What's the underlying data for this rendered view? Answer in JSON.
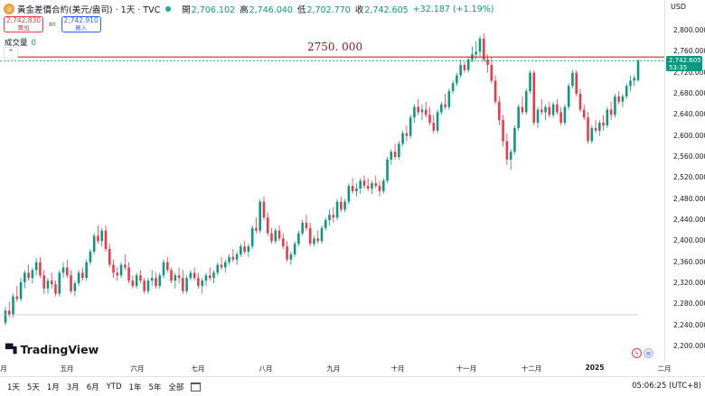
{
  "legend": {
    "symbol_icon": "gold-coin-icon",
    "title": "黃金差價合約(美元/盎司) · 1天 · TVC",
    "open_label": "開",
    "open": "2,706.102",
    "high_label": "高",
    "high": "2,746.040",
    "low_label": "低",
    "low": "2,702.770",
    "close_label": "收",
    "close": "2,742.605",
    "change": "+32.187 (+1.19%)"
  },
  "trade": {
    "sell_price": "2,742.830",
    "sell_label": "賣出",
    "spread": "80",
    "buy_price": "2,742.910",
    "buy_label": "買入"
  },
  "volume": {
    "label": "成交量",
    "value": "0"
  },
  "price_axis": {
    "currency": "USD",
    "ticks": [
      "2,800.000",
      "2,760.000",
      "2,720.000",
      "2,680.000",
      "2,640.000",
      "2,600.000",
      "2,560.000",
      "2,520.000",
      "2,480.000",
      "2,440.000",
      "2,400.000",
      "2,360.000",
      "2,320.000",
      "2,280.000",
      "2,240.000",
      "2,200.000"
    ],
    "last_price": "2,742.605",
    "countdown": "53:35"
  },
  "time_axis": {
    "ticks": [
      "月",
      "五月",
      "六月",
      "七月",
      "八月",
      "九月",
      "十月",
      "十一月",
      "十二月",
      "2025",
      "二月"
    ]
  },
  "horizontal_line": {
    "label": "2750. 000",
    "price": 2750,
    "color": "#cc2a2a"
  },
  "brand": {
    "name": "TradingView"
  },
  "bottom_bar": {
    "ranges": [
      "1天",
      "5天",
      "1月",
      "3月",
      "6月",
      "YTD",
      "1年",
      "5年",
      "全部"
    ],
    "time": "05:06:25 (UTC+8)"
  },
  "colors": {
    "up": "#089981",
    "down": "#f23645",
    "line": "#cc2a2a"
  },
  "chart_data": {
    "type": "candlestick",
    "y_range": [
      2200,
      2800
    ],
    "candles": [
      [
        2245,
        2275,
        2240,
        2268
      ],
      [
        2268,
        2285,
        2255,
        2260
      ],
      [
        2260,
        2300,
        2255,
        2295
      ],
      [
        2295,
        2315,
        2285,
        2290
      ],
      [
        2290,
        2330,
        2285,
        2322
      ],
      [
        2322,
        2345,
        2310,
        2340
      ],
      [
        2340,
        2355,
        2325,
        2330
      ],
      [
        2330,
        2350,
        2320,
        2345
      ],
      [
        2345,
        2368,
        2335,
        2360
      ],
      [
        2360,
        2370,
        2330,
        2335
      ],
      [
        2335,
        2345,
        2300,
        2310
      ],
      [
        2310,
        2330,
        2300,
        2325
      ],
      [
        2325,
        2340,
        2310,
        2318
      ],
      [
        2318,
        2325,
        2295,
        2300
      ],
      [
        2300,
        2345,
        2295,
        2340
      ],
      [
        2340,
        2360,
        2330,
        2350
      ],
      [
        2350,
        2365,
        2330,
        2335
      ],
      [
        2335,
        2345,
        2300,
        2305
      ],
      [
        2305,
        2325,
        2295,
        2320
      ],
      [
        2320,
        2345,
        2315,
        2340
      ],
      [
        2340,
        2350,
        2325,
        2330
      ],
      [
        2330,
        2365,
        2325,
        2360
      ],
      [
        2360,
        2385,
        2355,
        2380
      ],
      [
        2380,
        2415,
        2375,
        2410
      ],
      [
        2410,
        2430,
        2395,
        2400
      ],
      [
        2400,
        2425,
        2390,
        2420
      ],
      [
        2420,
        2430,
        2380,
        2385
      ],
      [
        2385,
        2395,
        2350,
        2355
      ],
      [
        2355,
        2365,
        2330,
        2340
      ],
      [
        2340,
        2350,
        2325,
        2335
      ],
      [
        2335,
        2360,
        2330,
        2355
      ],
      [
        2355,
        2375,
        2345,
        2350
      ],
      [
        2350,
        2360,
        2320,
        2325
      ],
      [
        2325,
        2335,
        2310,
        2315
      ],
      [
        2315,
        2340,
        2310,
        2335
      ],
      [
        2335,
        2345,
        2320,
        2325
      ],
      [
        2325,
        2330,
        2300,
        2305
      ],
      [
        2305,
        2330,
        2300,
        2325
      ],
      [
        2325,
        2345,
        2315,
        2330
      ],
      [
        2330,
        2340,
        2310,
        2315
      ],
      [
        2315,
        2340,
        2310,
        2335
      ],
      [
        2335,
        2365,
        2330,
        2360
      ],
      [
        2360,
        2370,
        2340,
        2345
      ],
      [
        2345,
        2350,
        2320,
        2325
      ],
      [
        2325,
        2340,
        2310,
        2335
      ],
      [
        2335,
        2350,
        2320,
        2330
      ],
      [
        2330,
        2345,
        2300,
        2305
      ],
      [
        2305,
        2335,
        2300,
        2330
      ],
      [
        2330,
        2345,
        2325,
        2340
      ],
      [
        2340,
        2350,
        2325,
        2330
      ],
      [
        2330,
        2340,
        2310,
        2315
      ],
      [
        2315,
        2330,
        2300,
        2325
      ],
      [
        2325,
        2340,
        2315,
        2335
      ],
      [
        2335,
        2350,
        2325,
        2330
      ],
      [
        2330,
        2345,
        2320,
        2340
      ],
      [
        2340,
        2360,
        2335,
        2355
      ],
      [
        2355,
        2370,
        2345,
        2350
      ],
      [
        2350,
        2365,
        2340,
        2360
      ],
      [
        2360,
        2375,
        2355,
        2370
      ],
      [
        2370,
        2385,
        2360,
        2365
      ],
      [
        2365,
        2380,
        2355,
        2375
      ],
      [
        2375,
        2395,
        2370,
        2390
      ],
      [
        2390,
        2400,
        2375,
        2380
      ],
      [
        2380,
        2395,
        2370,
        2390
      ],
      [
        2390,
        2430,
        2385,
        2425
      ],
      [
        2425,
        2445,
        2415,
        2420
      ],
      [
        2420,
        2480,
        2415,
        2475
      ],
      [
        2475,
        2485,
        2440,
        2445
      ],
      [
        2445,
        2455,
        2410,
        2415
      ],
      [
        2415,
        2425,
        2395,
        2400
      ],
      [
        2400,
        2425,
        2395,
        2420
      ],
      [
        2420,
        2430,
        2400,
        2405
      ],
      [
        2405,
        2415,
        2385,
        2390
      ],
      [
        2390,
        2400,
        2360,
        2365
      ],
      [
        2365,
        2380,
        2355,
        2375
      ],
      [
        2375,
        2400,
        2370,
        2395
      ],
      [
        2395,
        2420,
        2390,
        2415
      ],
      [
        2415,
        2440,
        2410,
        2435
      ],
      [
        2435,
        2450,
        2420,
        2425
      ],
      [
        2425,
        2435,
        2390,
        2395
      ],
      [
        2395,
        2410,
        2390,
        2405
      ],
      [
        2405,
        2420,
        2395,
        2400
      ],
      [
        2400,
        2430,
        2395,
        2425
      ],
      [
        2425,
        2445,
        2420,
        2440
      ],
      [
        2440,
        2460,
        2430,
        2450
      ],
      [
        2450,
        2465,
        2435,
        2445
      ],
      [
        2445,
        2480,
        2440,
        2475
      ],
      [
        2475,
        2485,
        2455,
        2460
      ],
      [
        2460,
        2480,
        2455,
        2475
      ],
      [
        2475,
        2510,
        2470,
        2505
      ],
      [
        2505,
        2520,
        2490,
        2495
      ],
      [
        2495,
        2510,
        2485,
        2500
      ],
      [
        2500,
        2520,
        2490,
        2515
      ],
      [
        2515,
        2525,
        2500,
        2505
      ],
      [
        2505,
        2520,
        2495,
        2500
      ],
      [
        2500,
        2515,
        2490,
        2510
      ],
      [
        2510,
        2525,
        2500,
        2505
      ],
      [
        2505,
        2515,
        2485,
        2495
      ],
      [
        2495,
        2520,
        2490,
        2515
      ],
      [
        2515,
        2560,
        2510,
        2555
      ],
      [
        2555,
        2575,
        2545,
        2570
      ],
      [
        2570,
        2585,
        2555,
        2560
      ],
      [
        2560,
        2590,
        2555,
        2585
      ],
      [
        2585,
        2610,
        2580,
        2605
      ],
      [
        2605,
        2620,
        2590,
        2600
      ],
      [
        2600,
        2640,
        2595,
        2635
      ],
      [
        2635,
        2660,
        2625,
        2655
      ],
      [
        2655,
        2670,
        2640,
        2645
      ],
      [
        2645,
        2660,
        2630,
        2650
      ],
      [
        2650,
        2665,
        2635,
        2640
      ],
      [
        2640,
        2655,
        2620,
        2625
      ],
      [
        2625,
        2640,
        2605,
        2610
      ],
      [
        2610,
        2650,
        2605,
        2645
      ],
      [
        2645,
        2665,
        2640,
        2660
      ],
      [
        2660,
        2680,
        2650,
        2655
      ],
      [
        2655,
        2690,
        2650,
        2685
      ],
      [
        2685,
        2705,
        2680,
        2700
      ],
      [
        2700,
        2720,
        2695,
        2715
      ],
      [
        2715,
        2745,
        2710,
        2735
      ],
      [
        2735,
        2740,
        2720,
        2725
      ],
      [
        2725,
        2750,
        2720,
        2745
      ],
      [
        2745,
        2770,
        2740,
        2755
      ],
      [
        2755,
        2780,
        2745,
        2760
      ],
      [
        2760,
        2790,
        2750,
        2785
      ],
      [
        2785,
        2795,
        2740,
        2745
      ],
      [
        2745,
        2755,
        2720,
        2735
      ],
      [
        2735,
        2750,
        2700,
        2705
      ],
      [
        2705,
        2715,
        2660,
        2665
      ],
      [
        2665,
        2675,
        2620,
        2630
      ],
      [
        2630,
        2640,
        2580,
        2590
      ],
      [
        2590,
        2605,
        2545,
        2555
      ],
      [
        2555,
        2575,
        2535,
        2570
      ],
      [
        2570,
        2620,
        2565,
        2615
      ],
      [
        2615,
        2660,
        2610,
        2655
      ],
      [
        2655,
        2675,
        2640,
        2645
      ],
      [
        2645,
        2690,
        2640,
        2685
      ],
      [
        2685,
        2725,
        2680,
        2720
      ],
      [
        2720,
        2725,
        2620,
        2625
      ],
      [
        2625,
        2655,
        2615,
        2650
      ],
      [
        2650,
        2670,
        2640,
        2645
      ],
      [
        2645,
        2660,
        2630,
        2655
      ],
      [
        2655,
        2665,
        2635,
        2640
      ],
      [
        2640,
        2665,
        2635,
        2660
      ],
      [
        2660,
        2670,
        2640,
        2645
      ],
      [
        2645,
        2655,
        2620,
        2625
      ],
      [
        2625,
        2660,
        2620,
        2655
      ],
      [
        2655,
        2700,
        2650,
        2695
      ],
      [
        2695,
        2725,
        2690,
        2720
      ],
      [
        2720,
        2725,
        2675,
        2680
      ],
      [
        2680,
        2690,
        2645,
        2650
      ],
      [
        2650,
        2660,
        2630,
        2635
      ],
      [
        2635,
        2645,
        2585,
        2590
      ],
      [
        2590,
        2620,
        2585,
        2615
      ],
      [
        2615,
        2630,
        2605,
        2610
      ],
      [
        2610,
        2630,
        2600,
        2625
      ],
      [
        2625,
        2640,
        2610,
        2620
      ],
      [
        2620,
        2655,
        2615,
        2650
      ],
      [
        2650,
        2665,
        2630,
        2640
      ],
      [
        2640,
        2680,
        2635,
        2675
      ],
      [
        2675,
        2685,
        2660,
        2665
      ],
      [
        2665,
        2680,
        2655,
        2675
      ],
      [
        2675,
        2700,
        2670,
        2695
      ],
      [
        2695,
        2715,
        2685,
        2705
      ],
      [
        2705,
        2715,
        2695,
        2710
      ],
      [
        2706,
        2746,
        2703,
        2743
      ]
    ]
  }
}
